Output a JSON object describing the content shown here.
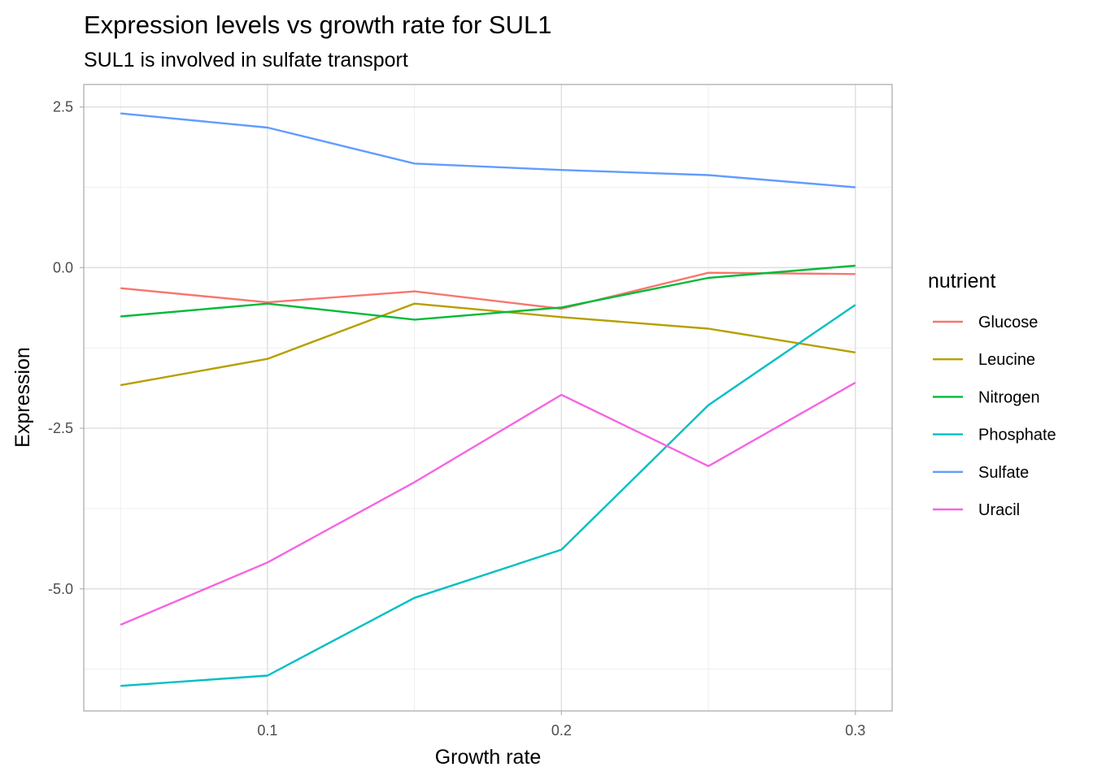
{
  "chart_data": {
    "type": "line",
    "title": "Expression levels vs growth rate for SUL1",
    "subtitle": "SUL1 is involved in sulfate transport",
    "xlabel": "Growth rate",
    "ylabel": "Expression",
    "xlim": [
      0.0375,
      0.3125
    ],
    "ylim": [
      -6.9,
      2.85
    ],
    "x_ticks": [
      0.1,
      0.2,
      0.3
    ],
    "x_tick_labels": [
      "0.1",
      "0.2",
      "0.3"
    ],
    "x_minor": [
      0.05,
      0.15,
      0.25
    ],
    "y_ticks": [
      2.5,
      0.0,
      -2.5,
      -5.0
    ],
    "y_tick_labels": [
      "2.5",
      "0.0",
      "-2.5",
      "-5.0"
    ],
    "y_minor": [
      1.25,
      -1.25,
      -3.75,
      -6.25
    ],
    "grid": true,
    "legend": {
      "title": "nutrient",
      "position": "right"
    },
    "x": [
      0.05,
      0.1,
      0.15,
      0.2,
      0.25,
      0.3
    ],
    "series": [
      {
        "name": "Glucose",
        "color": "#F8766D",
        "values": [
          -0.32,
          -0.54,
          -0.37,
          -0.64,
          -0.08,
          -0.1
        ]
      },
      {
        "name": "Leucine",
        "color": "#B79F00",
        "values": [
          -1.83,
          -1.42,
          -0.56,
          -0.77,
          -0.95,
          -1.32
        ]
      },
      {
        "name": "Nitrogen",
        "color": "#00BA38",
        "values": [
          -0.76,
          -0.56,
          -0.81,
          -0.62,
          -0.16,
          0.03
        ]
      },
      {
        "name": "Phosphate",
        "color": "#00BFC4",
        "values": [
          -6.51,
          -6.35,
          -5.14,
          -4.39,
          -2.14,
          -0.58
        ]
      },
      {
        "name": "Sulfate",
        "color": "#619CFF",
        "values": [
          2.4,
          2.18,
          1.62,
          1.52,
          1.44,
          1.25
        ]
      },
      {
        "name": "Uracil",
        "color": "#F564E3",
        "values": [
          -5.56,
          -4.59,
          -3.34,
          -1.98,
          -3.09,
          -1.79
        ]
      }
    ]
  }
}
